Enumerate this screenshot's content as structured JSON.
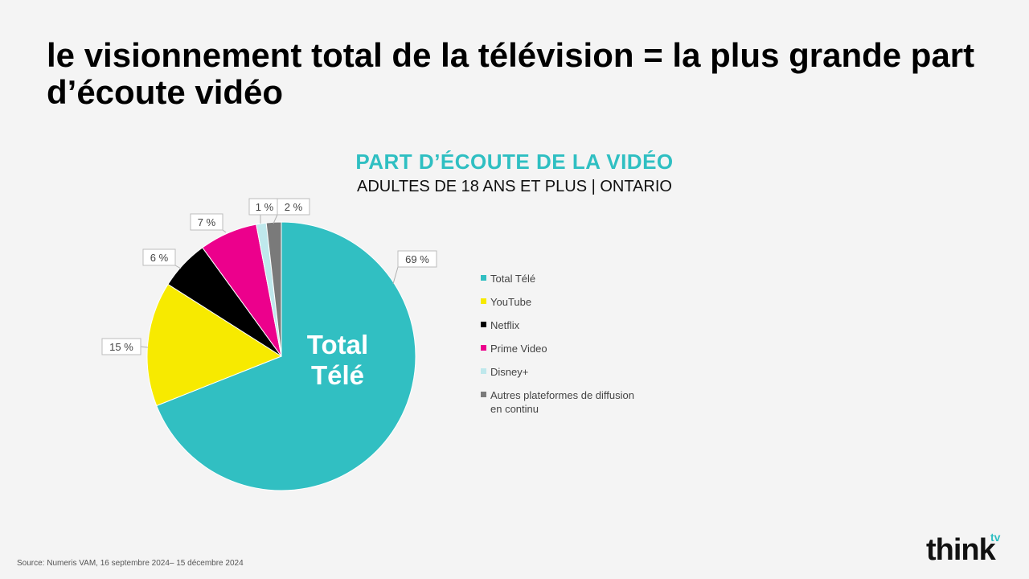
{
  "slide": {
    "title": "le visionnement total de la télévision = la plus grande part d’écoute vidéo",
    "source": "Source: Numeris VAM, 16 septembre 2024– 15 décembre 2024",
    "logo": {
      "main": "think",
      "sup": "tv"
    }
  },
  "chart_data": {
    "type": "pie",
    "title": "PART D’ÉCOUTE DE LA VIDÉO",
    "subtitle": "ADULTES DE 18 ANS ET PLUS | ONTARIO",
    "center_label": [
      "Total",
      "Télé"
    ],
    "legend_position": "right",
    "slices": [
      {
        "name": "Total Télé",
        "value": 69,
        "label": "69 %",
        "color": "#31bfc2"
      },
      {
        "name": "YouTube",
        "value": 15,
        "label": "15 %",
        "color": "#f7ea00"
      },
      {
        "name": "Netflix",
        "value": 6,
        "label": "6 %",
        "color": "#000000"
      },
      {
        "name": "Prime Video",
        "value": 7,
        "label": "7 %",
        "color": "#ec008c"
      },
      {
        "name": "Disney+",
        "value": 1.2,
        "label": "1 %",
        "color": "#bfe8ec"
      },
      {
        "name": "Autres plateformes de diffusion en continu",
        "value": 1.8,
        "label": "2 %",
        "color": "#7a7a7a"
      }
    ]
  }
}
